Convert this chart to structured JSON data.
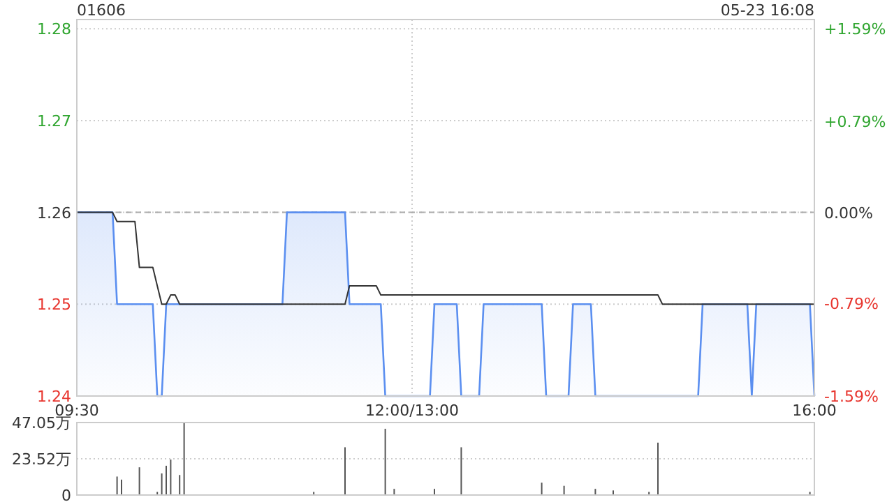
{
  "chart_data": [
    {
      "type": "area",
      "title": "01606",
      "annotations": [
        "05-23 16:08"
      ],
      "categories": [
        "09:30",
        null,
        null,
        null,
        null,
        null,
        null,
        null,
        null,
        null,
        null,
        null,
        null,
        null,
        null,
        null,
        null,
        null,
        null,
        null,
        null,
        null,
        null,
        null,
        null,
        null,
        null,
        null,
        null,
        null,
        null,
        null,
        null,
        null,
        null,
        null,
        null,
        null,
        null,
        null,
        null,
        null,
        null,
        null,
        null,
        null,
        null,
        null,
        null,
        null,
        null,
        null,
        null,
        null,
        null,
        null,
        null,
        null,
        null,
        null,
        null,
        null,
        null,
        null,
        null,
        null,
        null,
        null,
        null,
        null,
        null,
        null,
        null,
        null,
        null,
        "12:00/13:00",
        null,
        null,
        null,
        null,
        null,
        null,
        null,
        null,
        null,
        null,
        null,
        null,
        null,
        null,
        null,
        null,
        null,
        null,
        null,
        null,
        null,
        null,
        null,
        null,
        null,
        null,
        null,
        null,
        null,
        null,
        null,
        null,
        null,
        null,
        null,
        null,
        null,
        null,
        null,
        null,
        null,
        null,
        null,
        null,
        null,
        null,
        null,
        null,
        null,
        null,
        null,
        null,
        null,
        null,
        null,
        null,
        null,
        null,
        null,
        null,
        null,
        null,
        null,
        null,
        null,
        null,
        null,
        null,
        null,
        null,
        null,
        null,
        null,
        null,
        null,
        null,
        null,
        null,
        null,
        null,
        null,
        null,
        null,
        null,
        null,
        null,
        null,
        null,
        null,
        "16:00"
      ],
      "ylim": [
        1.24,
        1.281
      ],
      "yticks": [
        1.24,
        1.25,
        1.26,
        1.27,
        1.28
      ],
      "y2lim": [
        -1.59,
        1.67
      ],
      "y2ticks": [
        {
          "value": -1.59,
          "label": "-1.59%"
        },
        {
          "value": -0.79,
          "label": "-0.79%"
        },
        {
          "value": 0,
          "label": "0.00%"
        },
        {
          "value": 0.79,
          "label": "+0.79%"
        },
        {
          "value": 1.59,
          "label": "+1.59%"
        }
      ],
      "ref_lines": [
        {
          "axis": "y",
          "value": 1.26,
          "color": "#aaaaaa",
          "line_style": "dashed"
        }
      ],
      "grid": true,
      "series": [
        {
          "color": "#5b8ff0",
          "values": [
            1.26,
            1.26,
            1.26,
            1.26,
            1.26,
            1.26,
            1.26,
            1.26,
            1.26,
            1.25,
            1.25,
            1.25,
            1.25,
            1.25,
            1.25,
            1.25,
            1.25,
            1.25,
            1.24,
            1.24,
            1.25,
            1.25,
            1.25,
            1.25,
            1.25,
            1.25,
            1.25,
            1.25,
            1.25,
            1.25,
            1.25,
            1.25,
            1.25,
            1.25,
            1.25,
            1.25,
            1.25,
            1.25,
            1.25,
            1.25,
            1.25,
            1.25,
            1.25,
            1.25,
            1.25,
            1.25,
            1.25,
            1.26,
            1.26,
            1.26,
            1.26,
            1.26,
            1.26,
            1.26,
            1.26,
            1.26,
            1.26,
            1.26,
            1.26,
            1.26,
            1.26,
            1.25,
            1.25,
            1.25,
            1.25,
            1.25,
            1.25,
            1.25,
            1.25,
            1.24,
            1.24,
            1.24,
            1.24,
            1.24,
            1.24,
            1.24,
            1.24,
            1.24,
            1.24,
            1.24,
            1.25,
            1.25,
            1.25,
            1.25,
            1.25,
            1.25,
            1.24,
            1.24,
            1.24,
            1.24,
            1.24,
            1.25,
            1.25,
            1.25,
            1.25,
            1.25,
            1.25,
            1.25,
            1.25,
            1.25,
            1.25,
            1.25,
            1.25,
            1.25,
            1.25,
            1.24,
            1.24,
            1.24,
            1.24,
            1.24,
            1.24,
            1.25,
            1.25,
            1.25,
            1.25,
            1.25,
            1.24,
            1.24,
            1.24,
            1.24,
            1.24,
            1.24,
            1.24,
            1.24,
            1.24,
            1.24,
            1.24,
            1.24,
            1.24,
            1.24,
            1.24,
            1.24,
            1.24,
            1.24,
            1.24,
            1.24,
            1.24,
            1.24,
            1.24,
            1.24,
            1.25,
            1.25,
            1.25,
            1.25,
            1.25,
            1.25,
            1.25,
            1.25,
            1.25,
            1.25,
            1.25,
            1.24,
            1.25,
            1.25,
            1.25,
            1.25,
            1.25,
            1.25,
            1.25,
            1.25,
            1.25,
            1.25,
            1.25,
            1.25,
            1.25,
            1.24
          ]
        },
        {
          "type": "line",
          "color": "#333333",
          "values": [
            1.26,
            1.26,
            1.26,
            1.26,
            1.26,
            1.26,
            1.26,
            1.26,
            1.26,
            1.259,
            1.259,
            1.259,
            1.259,
            1.259,
            1.254,
            1.254,
            1.254,
            1.254,
            1.252,
            1.25,
            1.25,
            1.251,
            1.251,
            1.25,
            1.25,
            1.25,
            1.25,
            1.25,
            1.25,
            1.25,
            1.25,
            1.25,
            1.25,
            1.25,
            1.25,
            1.25,
            1.25,
            1.25,
            1.25,
            1.25,
            1.25,
            1.25,
            1.25,
            1.25,
            1.25,
            1.25,
            1.25,
            1.25,
            1.25,
            1.25,
            1.25,
            1.25,
            1.25,
            1.25,
            1.25,
            1.25,
            1.25,
            1.25,
            1.25,
            1.25,
            1.25,
            1.252,
            1.252,
            1.252,
            1.252,
            1.252,
            1.252,
            1.252,
            1.251,
            1.251,
            1.251,
            1.251,
            1.251,
            1.251,
            1.251,
            1.251,
            1.251,
            1.251,
            1.251,
            1.251,
            1.251,
            1.251,
            1.251,
            1.251,
            1.251,
            1.251,
            1.251,
            1.251,
            1.251,
            1.251,
            1.251,
            1.251,
            1.251,
            1.251,
            1.251,
            1.251,
            1.251,
            1.251,
            1.251,
            1.251,
            1.251,
            1.251,
            1.251,
            1.251,
            1.251,
            1.251,
            1.251,
            1.251,
            1.251,
            1.251,
            1.251,
            1.251,
            1.251,
            1.251,
            1.251,
            1.251,
            1.251,
            1.251,
            1.251,
            1.251,
            1.251,
            1.251,
            1.251,
            1.251,
            1.251,
            1.251,
            1.251,
            1.251,
            1.251,
            1.251,
            1.251,
            1.25,
            1.25,
            1.25,
            1.25,
            1.25,
            1.25,
            1.25,
            1.25,
            1.25,
            1.25,
            1.25,
            1.25,
            1.25,
            1.25,
            1.25,
            1.25,
            1.25,
            1.25,
            1.25,
            1.25,
            1.25,
            1.25,
            1.25,
            1.25,
            1.25,
            1.25,
            1.25,
            1.25,
            1.25,
            1.25,
            1.25,
            1.25,
            1.25,
            1.25,
            1.25
          ]
        }
      ]
    },
    {
      "type": "bar",
      "color": "#555555",
      "categories": [
        null,
        null,
        null,
        null,
        null,
        null,
        null,
        null,
        null,
        null,
        null,
        null,
        null,
        null,
        null,
        null,
        null,
        null,
        null,
        null,
        null,
        null,
        null,
        null,
        null,
        null,
        null,
        null,
        null,
        null,
        null,
        null,
        null,
        null,
        null,
        null,
        null,
        null,
        null,
        null,
        null,
        null,
        null,
        null,
        null,
        null,
        null,
        null,
        null,
        null,
        null,
        null,
        null,
        null,
        null,
        null,
        null,
        null,
        null,
        null,
        null,
        null,
        null,
        null,
        null,
        null,
        null,
        null,
        null,
        null,
        null,
        null,
        null,
        null,
        null,
        null,
        null,
        null,
        null,
        null,
        null,
        null,
        null,
        null,
        null,
        null,
        null,
        null,
        null,
        null,
        null,
        null,
        null,
        null,
        null,
        null,
        null,
        null,
        null,
        null,
        null,
        null,
        null,
        null,
        null,
        null,
        null,
        null,
        null,
        null,
        null,
        null,
        null,
        null,
        null,
        null,
        null,
        null,
        null,
        null,
        null,
        null,
        null,
        null,
        null,
        null,
        null,
        null,
        null,
        null,
        null,
        null,
        null,
        null,
        null,
        null,
        null,
        null,
        null,
        null,
        null,
        null,
        null,
        null,
        null,
        null,
        null,
        null,
        null,
        null,
        null,
        null,
        null,
        null,
        null,
        null,
        null,
        null,
        null,
        null,
        null,
        null,
        null,
        null,
        null,
        null
      ],
      "values": [
        null,
        null,
        null,
        null,
        null,
        null,
        null,
        null,
        null,
        12,
        10,
        null,
        null,
        null,
        18,
        null,
        null,
        null,
        2,
        14,
        19,
        23,
        null,
        13,
        47,
        null,
        null,
        null,
        null,
        null,
        null,
        null,
        null,
        null,
        null,
        null,
        null,
        null,
        null,
        null,
        null,
        null,
        null,
        null,
        null,
        null,
        null,
        null,
        null,
        null,
        null,
        null,
        null,
        2,
        null,
        null,
        null,
        null,
        null,
        null,
        31,
        null,
        null,
        null,
        null,
        null,
        null,
        null,
        null,
        43,
        null,
        4,
        null,
        null,
        null,
        null,
        null,
        null,
        null,
        null,
        4,
        null,
        null,
        null,
        null,
        null,
        31,
        null,
        null,
        null,
        null,
        null,
        null,
        null,
        null,
        null,
        null,
        null,
        null,
        null,
        null,
        null,
        null,
        null,
        8,
        null,
        null,
        null,
        null,
        6,
        null,
        null,
        null,
        null,
        null,
        null,
        4,
        null,
        null,
        null,
        3,
        null,
        null,
        null,
        null,
        null,
        null,
        null,
        2,
        null,
        34,
        null,
        null,
        null,
        null,
        null,
        null,
        null,
        null,
        null,
        null,
        null,
        null,
        null,
        null,
        null,
        null,
        null,
        null,
        null,
        null,
        null,
        null,
        null,
        null,
        null,
        null,
        null,
        null,
        null,
        null,
        null,
        null,
        null,
        2,
        null
      ],
      "ylim": [
        0,
        47.05
      ],
      "yticks": [
        0,
        {
          "value": 23.52,
          "label": "23.52万"
        },
        {
          "value": 47.05,
          "label": "47.05万"
        }
      ],
      "grid": "y"
    }
  ]
}
